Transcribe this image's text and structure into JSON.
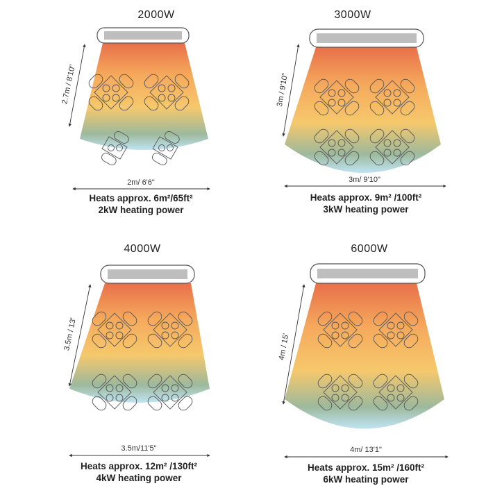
{
  "panels": [
    {
      "title": "2000W",
      "height_label": "2.7m / 8'10\"",
      "width_label": "2m/ 6'6\"",
      "area": "Heats approx. 6m²/65ft²",
      "power": "2kW heating power"
    },
    {
      "title": "3000W",
      "height_label": "3m / 9'10\"",
      "width_label": "3m/ 9'10\"",
      "area": "Heats approx. 9m² /100ft²",
      "power": "3kW heating power"
    },
    {
      "title": "4000W",
      "height_label": "3.5m / 13'",
      "width_label": "3.5m/11'5\"",
      "area": "Heats approx. 12m² /130ft²",
      "power": "4kW  heating power"
    },
    {
      "title": "6000W",
      "height_label": "4m / 15'",
      "width_label": "4m/ 13'1\"",
      "area": "Heats approx. 15m²  /160ft²",
      "power": "6kW heating power"
    }
  ],
  "colors": {
    "hot": "#e8704a",
    "warm": "#f5a95c",
    "mild": "#f6c86c",
    "cool": "#9db99c",
    "cold": "#bfe4f3"
  }
}
